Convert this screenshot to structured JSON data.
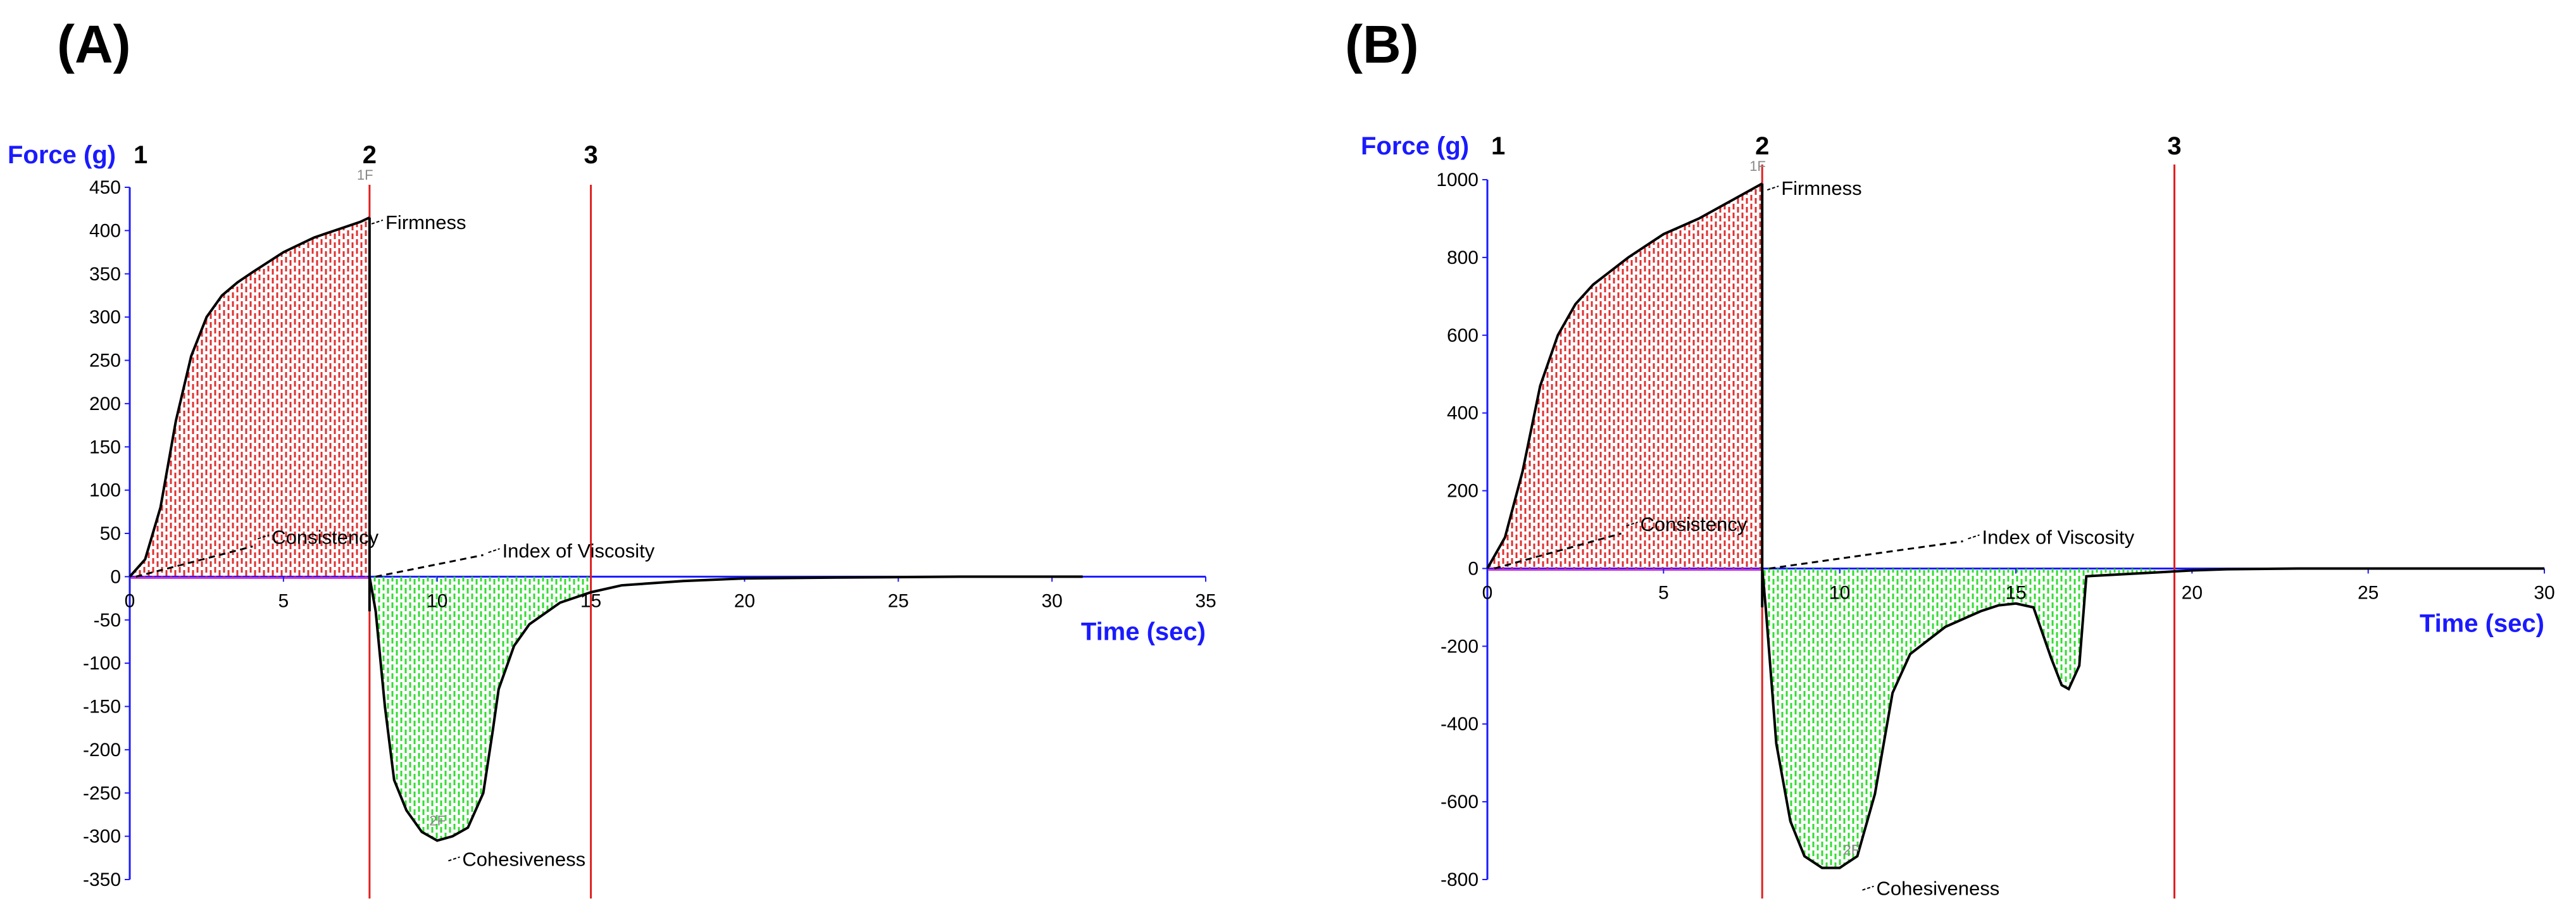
{
  "chart_data": [
    {
      "panel_label": "(A)",
      "type": "line",
      "ylabel": "Force (g)",
      "xlabel": "Time (sec)",
      "xlim": [
        0,
        35
      ],
      "ylim": [
        -350,
        450
      ],
      "xticks": [
        0,
        5,
        10,
        15,
        20,
        25,
        30,
        35
      ],
      "yticks": [
        450,
        400,
        350,
        300,
        250,
        200,
        150,
        100,
        50,
        0,
        -50,
        -100,
        -150,
        -200,
        -250,
        -300,
        -350
      ],
      "markers": [
        {
          "label": "1",
          "x": 0
        },
        {
          "label": "2",
          "x": 7.8
        },
        {
          "label": "3",
          "x": 15
        }
      ],
      "annotations": [
        {
          "text": "Firmness",
          "x": 7.7,
          "y": 415
        },
        {
          "text": "Consistency",
          "x": 4.0,
          "y": 35
        },
        {
          "text": "Index of Viscosity",
          "x": 11.5,
          "y": 25
        },
        {
          "text": "Cohesiveness",
          "x": 10.2,
          "y": -305
        }
      ],
      "series": [
        {
          "x": [
            0,
            0.5,
            1.0,
            1.5,
            2.0,
            2.5,
            3.0,
            3.5,
            4.0,
            5.0,
            6.0,
            7.0,
            7.5,
            7.8,
            7.8,
            8.0,
            8.3,
            8.6,
            9.0,
            9.5,
            10.0,
            10.5,
            11.0,
            11.5,
            11.8,
            12.0,
            12.5,
            13.0,
            14.0,
            15.0,
            16.0,
            18.0,
            20.0,
            23.0,
            27.0,
            30.0,
            31.0
          ],
          "values": [
            0,
            20,
            80,
            180,
            255,
            300,
            325,
            340,
            352,
            375,
            392,
            404,
            410,
            415,
            0,
            -40,
            -150,
            -235,
            -270,
            -295,
            -305,
            -300,
            -290,
            -250,
            -180,
            -130,
            -80,
            -55,
            -30,
            -18,
            -10,
            -5,
            -2,
            -1,
            0,
            0,
            0
          ]
        }
      ]
    },
    {
      "panel_label": "(B)",
      "type": "line",
      "ylabel": "Force (g)",
      "xlabel": "Time (sec)",
      "xlim": [
        0,
        30
      ],
      "ylim": [
        -800,
        1000
      ],
      "xticks": [
        0,
        5,
        10,
        15,
        20,
        25,
        30
      ],
      "yticks": [
        1000,
        800,
        600,
        400,
        200,
        0,
        -200,
        -400,
        -600,
        -800
      ],
      "markers": [
        {
          "label": "1",
          "x": 0
        },
        {
          "label": "2",
          "x": 7.8
        },
        {
          "label": "3",
          "x": 19.5
        }
      ],
      "annotations": [
        {
          "text": "Firmness",
          "x": 7.8,
          "y": 990
        },
        {
          "text": "Consistency",
          "x": 3.8,
          "y": 90
        },
        {
          "text": "Index of Viscosity",
          "x": 13.5,
          "y": 70
        },
        {
          "text": "Cohesiveness",
          "x": 10.5,
          "y": -775
        }
      ],
      "series": [
        {
          "x": [
            0,
            0.5,
            1.0,
            1.5,
            2.0,
            2.5,
            3.0,
            4.0,
            5.0,
            6.0,
            7.0,
            7.5,
            7.8,
            7.8,
            7.9,
            8.2,
            8.6,
            9.0,
            9.5,
            10.0,
            10.5,
            11.0,
            11.5,
            12.0,
            13.0,
            14.0,
            14.5,
            15.0,
            15.5,
            16.0,
            16.3,
            16.5,
            16.8,
            17.0,
            18.0,
            19.0,
            20.0,
            21.0,
            23.0,
            27.0,
            30.0
          ],
          "values": [
            0,
            80,
            250,
            470,
            600,
            680,
            730,
            800,
            860,
            900,
            950,
            975,
            990,
            0,
            -100,
            -450,
            -650,
            -740,
            -770,
            -770,
            -740,
            -580,
            -320,
            -220,
            -150,
            -110,
            -95,
            -90,
            -100,
            -230,
            -300,
            -310,
            -250,
            -20,
            -15,
            -10,
            -5,
            -2,
            0,
            0,
            0
          ]
        }
      ]
    }
  ]
}
